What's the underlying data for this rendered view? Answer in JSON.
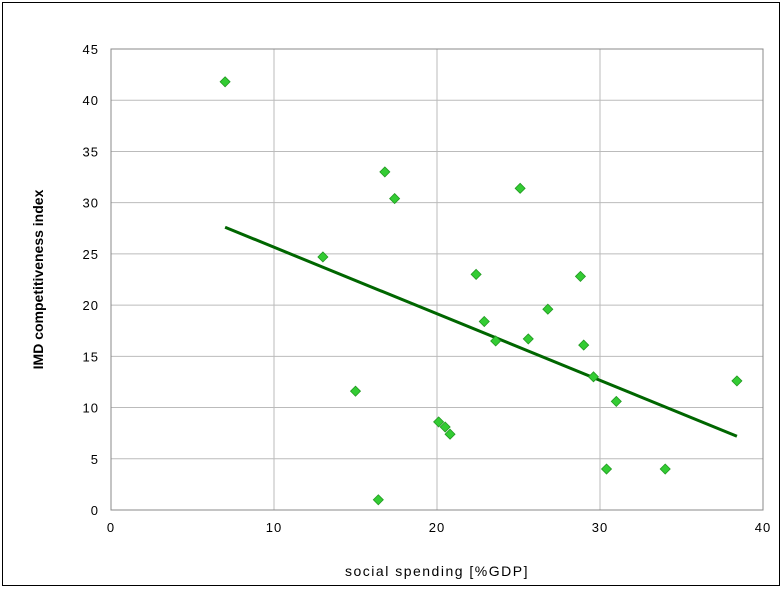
{
  "chart_data": {
    "type": "scatter",
    "title": "",
    "xlabel": "social spending [%GDP]",
    "ylabel": "IMD competitiveness index",
    "xlim": [
      0,
      40
    ],
    "ylim": [
      0,
      45
    ],
    "xticks": [
      0,
      10,
      20,
      30,
      40
    ],
    "yticks": [
      0,
      5,
      10,
      15,
      20,
      25,
      30,
      35,
      40,
      45
    ],
    "grid": true,
    "legend": "none",
    "marker_color": "#33cc33",
    "trend_color": "#006600",
    "series": [
      {
        "points": [
          {
            "x": 7.0,
            "y": 41.8
          },
          {
            "x": 13.0,
            "y": 24.7
          },
          {
            "x": 15.0,
            "y": 11.6
          },
          {
            "x": 16.4,
            "y": 1.0
          },
          {
            "x": 16.8,
            "y": 33.0
          },
          {
            "x": 17.4,
            "y": 30.4
          },
          {
            "x": 20.1,
            "y": 8.6
          },
          {
            "x": 20.5,
            "y": 8.1
          },
          {
            "x": 20.8,
            "y": 7.4
          },
          {
            "x": 22.4,
            "y": 23.0
          },
          {
            "x": 22.9,
            "y": 18.4
          },
          {
            "x": 23.6,
            "y": 16.5
          },
          {
            "x": 25.1,
            "y": 31.4
          },
          {
            "x": 25.6,
            "y": 16.7
          },
          {
            "x": 26.8,
            "y": 19.6
          },
          {
            "x": 28.8,
            "y": 22.8
          },
          {
            "x": 29.0,
            "y": 16.1
          },
          {
            "x": 29.6,
            "y": 13.0
          },
          {
            "x": 30.4,
            "y": 4.0
          },
          {
            "x": 31.0,
            "y": 10.6
          },
          {
            "x": 34.0,
            "y": 4.0
          },
          {
            "x": 38.4,
            "y": 12.6
          }
        ]
      }
    ],
    "trendline": {
      "x": [
        7.0,
        38.4
      ],
      "y": [
        27.6,
        7.2
      ]
    }
  }
}
